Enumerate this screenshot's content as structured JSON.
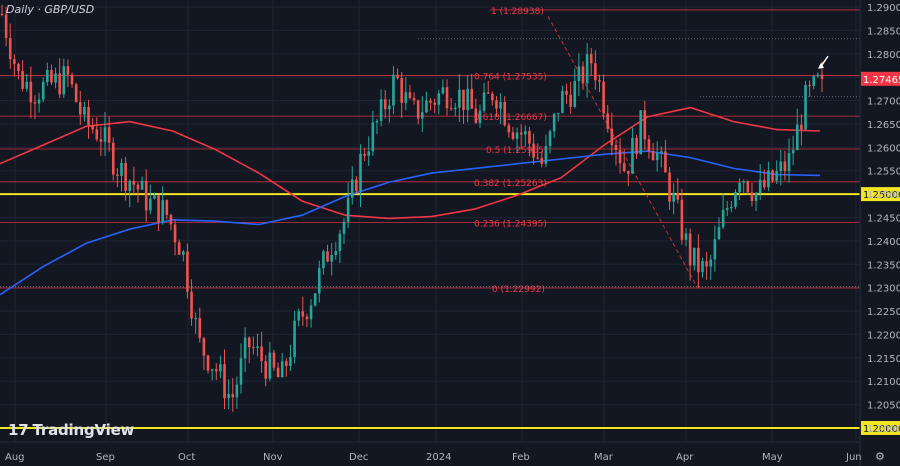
{
  "header": {
    "title": "Daily · GBP/USD"
  },
  "watermark": {
    "logo_text": "TradingView"
  },
  "colors": {
    "background": "#131722",
    "grid": "#1f2433",
    "up": "#26a69a",
    "down": "#ef5350",
    "ma_red": "#f23645",
    "ma_blue": "#2962ff",
    "fib": "#f23645",
    "horizontal": "#f2e522",
    "price_tag": "#f23645"
  },
  "chart_data": {
    "type": "candlestick",
    "title": "Daily · GBP/USD",
    "ylim": [
      1.197,
      1.2915
    ],
    "y_ticks": [
      "1.29000",
      "1.28500",
      "1.28000",
      "1.27500",
      "1.27000",
      "1.26500",
      "1.26000",
      "1.25500",
      "1.25000",
      "1.24500",
      "1.24000",
      "1.23500",
      "1.23000",
      "1.22500",
      "1.22000",
      "1.21500",
      "1.21000",
      "1.20500",
      "1.20000"
    ],
    "x_ticks": [
      "Aug",
      "Sep",
      "Oct",
      "Nov",
      "Dec",
      "2024",
      "Feb",
      "Mar",
      "Apr",
      "May",
      "Jun"
    ],
    "last_price": "1.27465",
    "horizontal_levels": [
      {
        "value": 1.25,
        "label": "1.25000"
      },
      {
        "value": 1.2,
        "label": "1.20000"
      }
    ],
    "fibonacci": [
      {
        "label": "1 (1.28938)",
        "value": 1.28938
      },
      {
        "label": "0.764 (1.27535)",
        "value": 1.27535
      },
      {
        "label": "0.618 (1.26667)",
        "value": 1.26667
      },
      {
        "label": "0.5 (1.25965)",
        "value": 1.25965
      },
      {
        "label": "0.382 (1.25263)",
        "value": 1.25263
      },
      {
        "label": "0.236 (1.24395)",
        "value": 1.24395
      },
      {
        "label": "0 (1.22992)",
        "value": 1.22992
      }
    ],
    "ma_red_points": [
      [
        "Aug",
        1.2565
      ],
      [
        "Aug-mid",
        1.2605
      ],
      [
        "Sep",
        1.2645
      ],
      [
        "Sep-mid",
        1.2655
      ],
      [
        "Oct",
        1.2635
      ],
      [
        "Oct-mid",
        1.2595
      ],
      [
        "Nov",
        1.2545
      ],
      [
        "Nov-mid",
        1.2485
      ],
      [
        "Dec",
        1.2455
      ],
      [
        "Dec-mid",
        1.2448
      ],
      [
        "2024",
        1.2452
      ],
      [
        "Jan-mid",
        1.2468
      ],
      [
        "Feb",
        1.2498
      ],
      [
        "Feb-mid",
        1.2535
      ],
      [
        "Mar",
        1.2605
      ],
      [
        "Mar-mid",
        1.2665
      ],
      [
        "Apr",
        1.2685
      ],
      [
        "Apr-mid",
        1.2655
      ],
      [
        "May",
        1.2638
      ],
      [
        "May-end",
        1.2635
      ]
    ],
    "ma_blue_points": [
      [
        "Aug",
        1.2285
      ],
      [
        "Aug-mid",
        1.2345
      ],
      [
        "Sep",
        1.2395
      ],
      [
        "Sep-mid",
        1.2425
      ],
      [
        "Oct",
        1.2445
      ],
      [
        "Oct-mid",
        1.2442
      ],
      [
        "Nov",
        1.2435
      ],
      [
        "Nov-mid",
        1.2455
      ],
      [
        "Dec",
        1.2495
      ],
      [
        "Dec-mid",
        1.2525
      ],
      [
        "2024",
        1.2545
      ],
      [
        "Jan-mid",
        1.2555
      ],
      [
        "Feb",
        1.2565
      ],
      [
        "Feb-mid",
        1.2575
      ],
      [
        "Mar",
        1.2585
      ],
      [
        "Mar-mid",
        1.2592
      ],
      [
        "Apr",
        1.2578
      ],
      [
        "Apr-mid",
        1.2555
      ],
      [
        "May",
        1.2542
      ],
      [
        "May-end",
        1.254
      ]
    ],
    "price_path": [
      1.2885,
      1.2752,
      1.272,
      1.2735,
      1.275,
      1.2655,
      1.263,
      1.256,
      1.2525,
      1.248,
      1.246,
      1.238,
      1.218,
      1.213,
      1.206,
      1.218,
      1.214,
      1.21,
      1.222,
      1.229,
      1.239,
      1.245,
      1.259,
      1.266,
      1.275,
      1.267,
      1.2695,
      1.272,
      1.271,
      1.266,
      1.2725,
      1.265,
      1.262,
      1.256,
      1.27,
      1.273,
      1.279,
      1.266,
      1.255,
      1.265,
      1.258,
      1.248,
      1.236,
      1.233,
      1.245,
      1.255,
      1.25,
      1.253,
      1.257,
      1.27,
      1.2746
    ]
  }
}
